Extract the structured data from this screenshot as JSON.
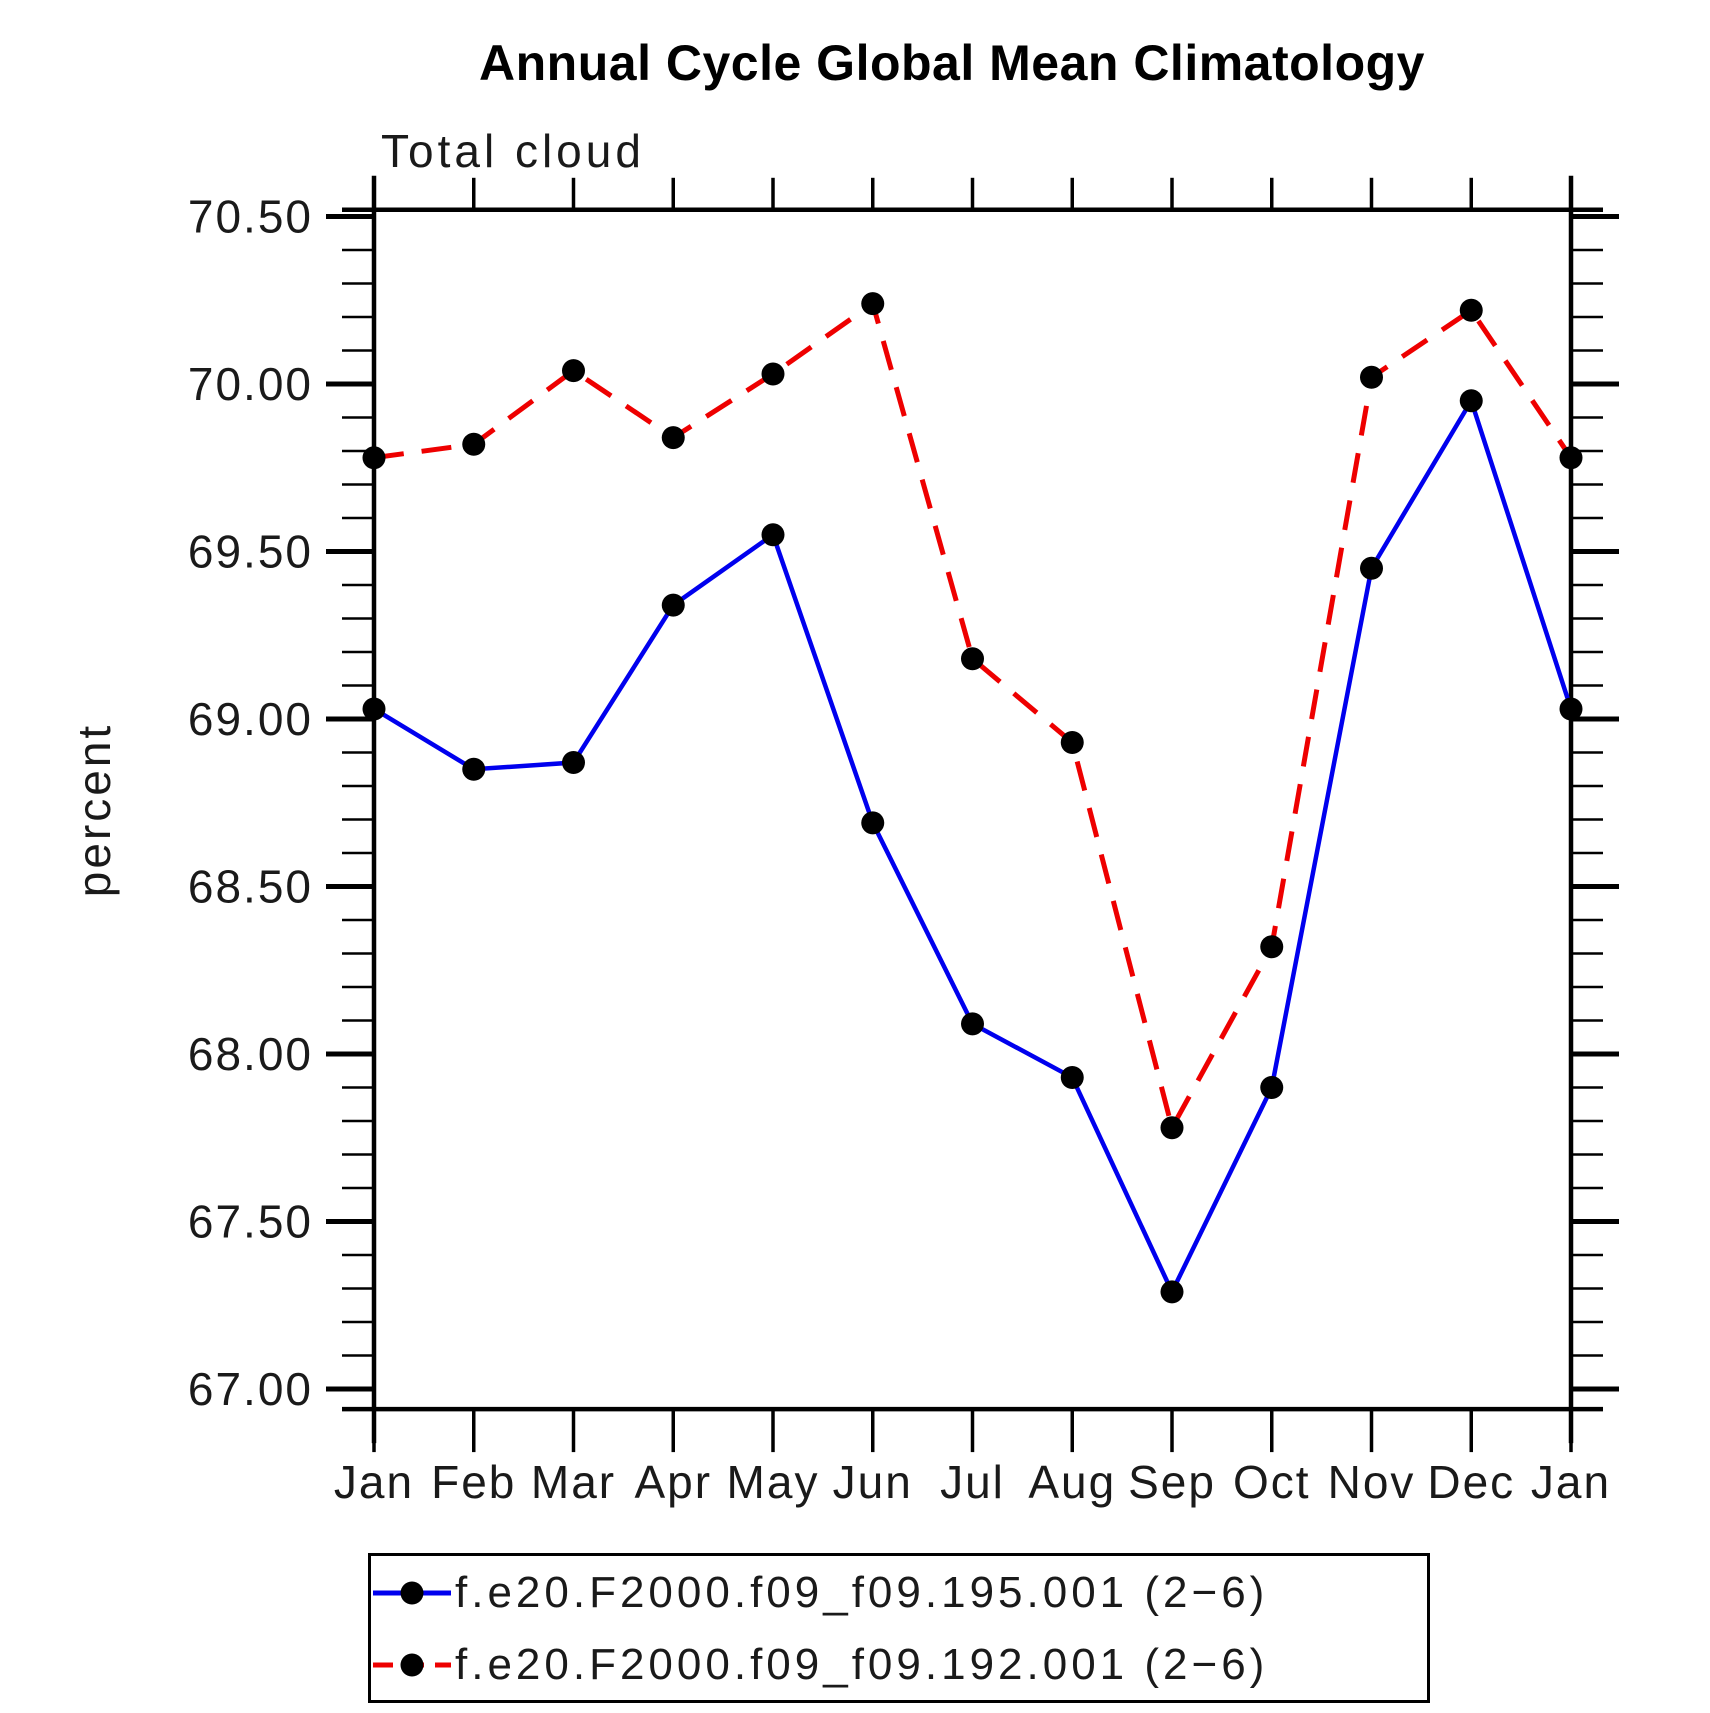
{
  "title": "Annual Cycle Global Mean Climatology",
  "subtitle": "Total cloud",
  "chart_data": {
    "type": "line",
    "title": "Annual Cycle Global Mean Climatology",
    "subtitle": "Total cloud",
    "xlabel": "",
    "ylabel": "percent",
    "categories": [
      "Jan",
      "Feb",
      "Mar",
      "Apr",
      "May",
      "Jun",
      "Jul",
      "Aug",
      "Sep",
      "Oct",
      "Nov",
      "Dec",
      "Jan"
    ],
    "series": [
      {
        "name": "f.e20.F2000.f09_f09.195.001 (2−6)",
        "color": "#0000ee",
        "line_style": "solid",
        "marker": "circle",
        "marker_color": "#000000",
        "values": [
          69.03,
          68.85,
          68.87,
          69.34,
          69.55,
          68.69,
          68.09,
          67.93,
          67.29,
          67.9,
          69.45,
          69.95,
          69.03
        ]
      },
      {
        "name": "f.e20.F2000.f09_f09.192.001 (2−6)",
        "color": "#ee0000",
        "line_style": "dashed",
        "marker": "circle",
        "marker_color": "#000000",
        "values": [
          69.78,
          69.82,
          70.04,
          69.84,
          70.03,
          70.24,
          69.18,
          68.93,
          67.78,
          68.32,
          70.02,
          70.22,
          69.78
        ]
      }
    ],
    "ylim": [
      66.94,
      70.52
    ],
    "yticks_major": [
      67.0,
      67.5,
      68.0,
      68.5,
      69.0,
      69.5,
      70.0,
      70.5
    ],
    "ytick_labels": [
      "67.00",
      "67.50",
      "68.00",
      "68.50",
      "69.00",
      "69.50",
      "70.00",
      "70.50"
    ],
    "yminor_step": 0.1,
    "grid": false,
    "legend_position": "bottom",
    "axis_color": "#000000"
  }
}
